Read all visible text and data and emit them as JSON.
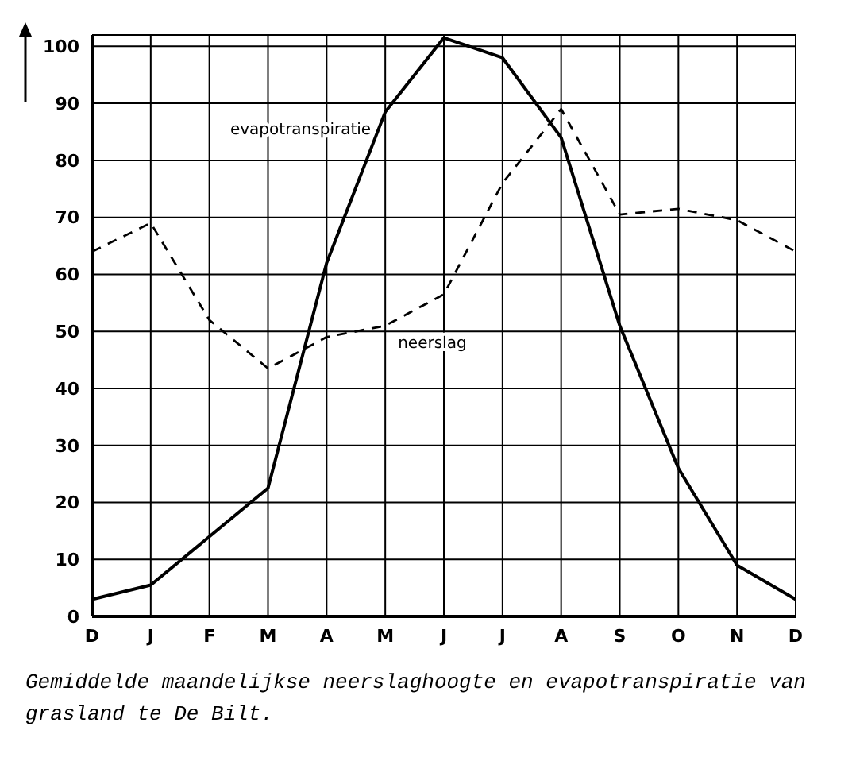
{
  "chart_data": {
    "type": "line",
    "categories": [
      "D",
      "J",
      "F",
      "M",
      "A",
      "M",
      "J",
      "J",
      "A",
      "S",
      "O",
      "N",
      "D"
    ],
    "series": [
      {
        "name": "evapotranspiratie",
        "color": "#000000",
        "line_style": "solid",
        "values": [
          3,
          5.5,
          14,
          22.5,
          62,
          88.5,
          101.5,
          98,
          84,
          51,
          26,
          9,
          3
        ]
      },
      {
        "name": "neerslag",
        "color": "#000000",
        "line_style": "dashed",
        "values": [
          64,
          69,
          52,
          43.5,
          49,
          51,
          56.5,
          76,
          89,
          70.5,
          71.5,
          69.5,
          64
        ]
      }
    ],
    "ylim": [
      0,
      102
    ],
    "yticks": [
      0,
      10,
      20,
      30,
      40,
      50,
      60,
      70,
      80,
      90,
      100
    ],
    "grid": true,
    "legend": false,
    "marker": "none",
    "annotations": [
      "Gemiddelde maandelijkse neerslaghoogte en evapotranspiratie van grasland te De Bilt."
    ]
  }
}
